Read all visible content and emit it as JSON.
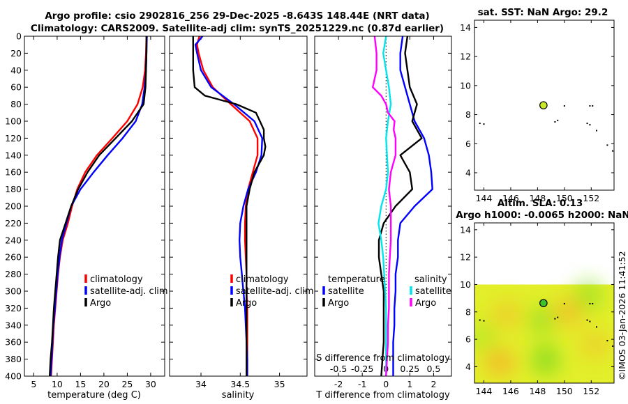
{
  "titles": {
    "line1": "Argo profile: csio 2902816_256 29-Dec-2025 -8.643S 148.44E (NRT data)",
    "line2": "Climatology: CARS2009. Satellite-adj clim: synTS_20251229.nc (0.87d earlier)",
    "sst": "sat. SST: NaN Argo: 29.2",
    "sla1": "Altim. SLA: 0.13",
    "sla2": "Argo h1000: -0.0065 h2000: NaN"
  },
  "credit": "©IMOS 03-Jan-2026 11:41:52",
  "colors": {
    "clim": "#ff0000",
    "sat": "#0000ff",
    "argo": "#000000",
    "sdiff_sat": "#00e5ee",
    "sdiff_argo": "#ff00ff"
  },
  "chart_data": [
    {
      "type": "line",
      "id": "temperature",
      "xlabel": "temperature (deg C)",
      "ylabel": "",
      "xlim": [
        3,
        33
      ],
      "ylim": [
        400,
        0
      ],
      "xticks": [
        "5",
        "10",
        "15",
        "20",
        "25",
        "30"
      ],
      "xtick_values": [
        5,
        10,
        15,
        20,
        25,
        30
      ],
      "yticks": [
        "0",
        "20",
        "40",
        "60",
        "80",
        "100",
        "120",
        "140",
        "160",
        "180",
        "200",
        "220",
        "240",
        "260",
        "280",
        "300",
        "320",
        "340",
        "360",
        "380",
        "400"
      ],
      "ytick_values": [
        0,
        20,
        40,
        60,
        80,
        100,
        120,
        140,
        160,
        180,
        200,
        220,
        240,
        260,
        280,
        300,
        320,
        340,
        360,
        380,
        400
      ],
      "legend": [
        "climatology",
        "satellite-adj. clim",
        "Argo"
      ],
      "series": [
        {
          "name": "climatology",
          "depth": [
            0,
            20,
            40,
            60,
            80,
            100,
            120,
            140,
            160,
            180,
            200,
            220,
            240,
            260,
            280,
            300,
            320,
            340,
            360,
            380,
            400
          ],
          "values": [
            29.1,
            29.0,
            28.8,
            28.3,
            27.2,
            25.0,
            21.8,
            18.5,
            16.0,
            14.3,
            13.2,
            12.3,
            11.2,
            10.6,
            10.2,
            9.9,
            9.6,
            9.3,
            9.1,
            8.9,
            8.7
          ]
        },
        {
          "name": "satellite-adj. clim",
          "depth": [
            0,
            20,
            40,
            60,
            80,
            100,
            120,
            140,
            160,
            180,
            200,
            220,
            240,
            260,
            280,
            300,
            320,
            340,
            360,
            380,
            400
          ],
          "values": [
            29.2,
            29.1,
            29.0,
            28.7,
            28.2,
            26.8,
            24.0,
            20.8,
            17.8,
            15.0,
            13.0,
            12.0,
            11.0,
            10.5,
            10.1,
            9.8,
            9.5,
            9.2,
            9.0,
            8.8,
            8.6
          ]
        },
        {
          "name": "Argo",
          "depth": [
            0,
            20,
            40,
            60,
            80,
            100,
            120,
            140,
            160,
            180,
            200,
            220,
            240,
            260,
            280,
            300,
            320,
            340,
            360,
            380,
            400
          ],
          "values": [
            29.1,
            29.1,
            29.0,
            28.9,
            28.5,
            26.0,
            22.5,
            19.0,
            16.5,
            14.5,
            13.0,
            11.8,
            10.6,
            10.2,
            9.9,
            9.6,
            9.3,
            9.1,
            8.9,
            8.6,
            8.4
          ]
        }
      ]
    },
    {
      "type": "line",
      "id": "salinity",
      "xlabel": "salinity",
      "xlim": [
        33.6,
        35.35
      ],
      "ylim": [
        400,
        0
      ],
      "xticks": [
        "34",
        "34.5",
        "35"
      ],
      "xtick_values": [
        34,
        34.5,
        35
      ],
      "legend": [
        "climatology",
        "satellite-adj. clim",
        "Argo"
      ],
      "series": [
        {
          "name": "climatology",
          "depth": [
            0,
            10,
            20,
            40,
            60,
            80,
            100,
            120,
            140,
            160,
            180,
            200,
            220,
            240,
            260,
            280,
            300,
            320,
            340,
            360,
            380,
            400
          ],
          "values": [
            33.98,
            33.95,
            33.97,
            34.03,
            34.15,
            34.38,
            34.62,
            34.72,
            34.72,
            34.66,
            34.6,
            34.57,
            34.56,
            34.56,
            34.57,
            34.58,
            34.58,
            34.59,
            34.59,
            34.59,
            34.59,
            34.59
          ]
        },
        {
          "name": "satellite-adj. clim",
          "depth": [
            0,
            10,
            20,
            40,
            60,
            80,
            100,
            120,
            140,
            160,
            180,
            200,
            220,
            240,
            260,
            280,
            300,
            320,
            340,
            360,
            380,
            400
          ],
          "values": [
            34.02,
            33.93,
            33.95,
            34.0,
            34.13,
            34.42,
            34.68,
            34.78,
            34.77,
            34.7,
            34.6,
            34.54,
            34.5,
            34.49,
            34.5,
            34.52,
            34.54,
            34.56,
            34.57,
            34.58,
            34.59,
            34.59
          ]
        },
        {
          "name": "Argo",
          "depth": [
            0,
            20,
            40,
            60,
            70,
            80,
            90,
            100,
            110,
            120,
            130,
            140,
            160,
            180,
            200,
            220,
            240,
            260,
            280,
            300,
            320,
            340,
            360,
            380,
            400
          ],
          "values": [
            33.9,
            33.9,
            33.9,
            33.92,
            34.05,
            34.45,
            34.7,
            34.75,
            34.8,
            34.8,
            34.82,
            34.8,
            34.68,
            34.62,
            34.58,
            34.58,
            34.58,
            34.58,
            34.58,
            34.58,
            34.58,
            34.58,
            34.58,
            34.58,
            34.58
          ]
        }
      ]
    },
    {
      "type": "line",
      "id": "difference",
      "xlabel": "T difference from climatology",
      "top_label": "S difference from climatology",
      "xlim": [
        -3,
        2.75
      ],
      "ylim": [
        400,
        0
      ],
      "xticks": [
        "-2",
        "-1",
        "0",
        "1",
        "2"
      ],
      "xtick_values": [
        -2,
        -1,
        0,
        1,
        2
      ],
      "sticks": [
        "-0.5",
        "-0.25",
        "0",
        "0.25",
        "0.5"
      ],
      "stick_values": [
        -0.5,
        -0.25,
        0,
        0.25,
        0.5
      ],
      "legend_headers": [
        "temperature",
        "salinity"
      ],
      "legend_t": [
        "satellite",
        "Argo"
      ],
      "legend_s": [
        "satellite",
        "Argo"
      ],
      "series": [
        {
          "name": "T satellite",
          "depth": [
            0,
            20,
            40,
            60,
            80,
            100,
            120,
            140,
            160,
            180,
            200,
            220,
            240,
            260,
            280,
            300,
            320,
            340,
            360,
            380,
            400
          ],
          "values": [
            0.7,
            0.6,
            0.6,
            0.8,
            1.0,
            1.2,
            1.6,
            1.8,
            1.9,
            1.95,
            1.2,
            0.6,
            0.5,
            0.5,
            0.4,
            0.4,
            0.35,
            0.35,
            0.3,
            0.3,
            0.3
          ]
        },
        {
          "name": "T Argo",
          "depth": [
            0,
            20,
            40,
            60,
            80,
            100,
            120,
            140,
            160,
            180,
            200,
            220,
            240,
            260,
            280,
            300,
            320,
            340,
            360,
            380,
            400
          ],
          "values": [
            0.9,
            0.8,
            0.9,
            1.0,
            1.3,
            1.1,
            1.5,
            0.6,
            1.0,
            1.1,
            0.4,
            -0.1,
            -0.3,
            -0.3,
            -0.2,
            -0.1,
            -0.1,
            -0.1,
            -0.1,
            -0.15,
            -0.2
          ]
        },
        {
          "name": "S satellite",
          "depth": [
            0,
            20,
            40,
            60,
            80,
            100,
            120,
            140,
            160,
            180,
            200,
            220,
            240,
            260,
            280,
            300,
            320,
            340,
            360,
            380,
            400
          ],
          "values": [
            0.0,
            -0.03,
            0.0,
            0.03,
            0.05,
            0.02,
            0.0,
            0.01,
            0.02,
            0.0,
            -0.05,
            -0.08,
            -0.05,
            -0.03,
            -0.02,
            -0.01,
            0.0,
            0.0,
            0.0,
            0.0,
            0.0
          ]
        },
        {
          "name": "S Argo",
          "depth": [
            0,
            20,
            40,
            60,
            70,
            80,
            90,
            100,
            110,
            120,
            140,
            160,
            180,
            200,
            220,
            240,
            260,
            280,
            300,
            320,
            340,
            360,
            380,
            400
          ],
          "values": [
            -0.12,
            -0.1,
            -0.1,
            -0.14,
            -0.05,
            0.0,
            0.02,
            0.09,
            0.08,
            0.1,
            0.1,
            0.05,
            0.03,
            0.05,
            0.05,
            0.05,
            0.04,
            0.03,
            0.03,
            0.03,
            0.02,
            0.02,
            0.01,
            0.0
          ]
        }
      ]
    },
    {
      "type": "scatter",
      "id": "sst_map",
      "xlim": [
        143.3,
        153.7
      ],
      "ylim": [
        2.8,
        14.5
      ],
      "xticks": [
        "144",
        "146",
        "148",
        "150",
        "152"
      ],
      "xtick_values": [
        144,
        146,
        148,
        150,
        152
      ],
      "yticks": [
        "4",
        "6",
        "8",
        "10",
        "12",
        "14"
      ],
      "ytick_values": [
        4,
        6,
        8,
        10,
        12,
        14
      ],
      "profile": {
        "lon": 148.44,
        "lat": 8.643
      },
      "marks": [
        {
          "lon": 143.7,
          "lat": 7.4
        },
        {
          "lon": 144.0,
          "lat": 7.35
        },
        {
          "lon": 149.3,
          "lat": 7.5
        },
        {
          "lon": 149.5,
          "lat": 7.6
        },
        {
          "lon": 150.0,
          "lat": 8.6
        },
        {
          "lon": 151.9,
          "lat": 8.6
        },
        {
          "lon": 152.1,
          "lat": 8.6
        },
        {
          "lon": 151.7,
          "lat": 7.4
        },
        {
          "lon": 151.9,
          "lat": 7.3
        },
        {
          "lon": 152.4,
          "lat": 6.9
        },
        {
          "lon": 153.2,
          "lat": 5.9
        },
        {
          "lon": 153.6,
          "lat": 5.5
        }
      ]
    },
    {
      "type": "heatmap",
      "id": "sla_map",
      "xlim": [
        143.3,
        153.7
      ],
      "ylim": [
        2.8,
        14.5
      ],
      "xticks": [
        "144",
        "146",
        "148",
        "150",
        "152"
      ],
      "xtick_values": [
        144,
        146,
        148,
        150,
        152
      ],
      "yticks": [
        "4",
        "6",
        "8",
        "10",
        "12",
        "14"
      ],
      "ytick_values": [
        4,
        6,
        8,
        10,
        12,
        14
      ],
      "field_lat_max": 10,
      "profile": {
        "lon": 148.44,
        "lat": 8.643
      },
      "hot_spots": [
        {
          "lon": 145.2,
          "lat": 4.3,
          "level": 0.9
        },
        {
          "lon": 150.3,
          "lat": 8.0,
          "level": 0.75
        },
        {
          "lon": 145.7,
          "lat": 7.8,
          "level": 0.55
        },
        {
          "lon": 152.3,
          "lat": 5.6,
          "level": 0.5
        }
      ],
      "cool_spots": [
        {
          "lon": 148.6,
          "lat": 4.5,
          "level": 0.9
        },
        {
          "lon": 148.3,
          "lat": 7.4,
          "level": 0.6
        },
        {
          "lon": 151.8,
          "lat": 9.2,
          "level": 0.6
        },
        {
          "lon": 143.9,
          "lat": 6.2,
          "level": 0.4
        }
      ]
    }
  ]
}
